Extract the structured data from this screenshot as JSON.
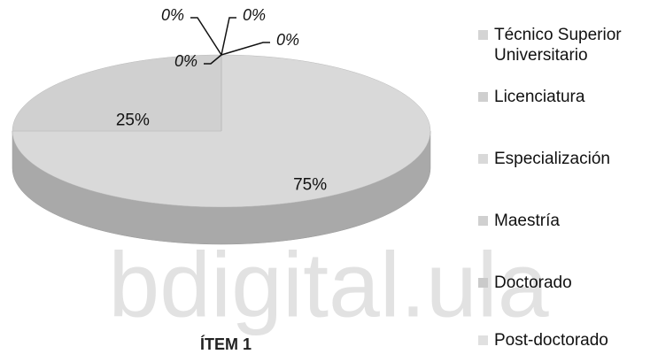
{
  "chart_data": {
    "type": "pie3d",
    "title": "ÍTEM 1",
    "categories": [
      "Técnico Superior Universitario",
      "Licenciatura",
      "Especialización",
      "Maestría",
      "Doctorado",
      "Post-doctorado"
    ],
    "values": [
      0,
      0,
      75,
      25,
      0,
      0
    ],
    "value_labels": [
      "0%",
      "0%",
      "75%",
      "25%",
      "0%",
      "0%"
    ],
    "colors": [
      "#d4d4d4",
      "#cfcfcf",
      "#d9d9d9",
      "#d0d0d0",
      "#cacaca",
      "#e0e0e0"
    ],
    "legend": "right",
    "watermark": "bdigital.ula"
  }
}
